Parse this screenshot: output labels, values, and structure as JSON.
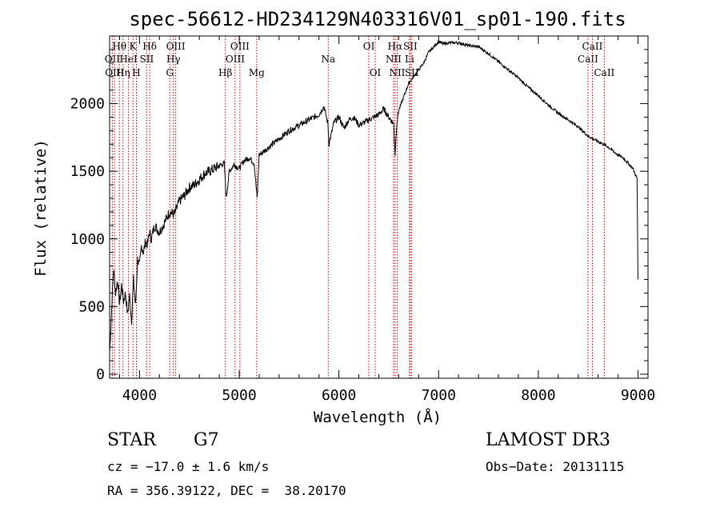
{
  "chart_data": {
    "type": "line",
    "title": "spec-56612-HD234129N403316V01_sp01-190.fits",
    "xlabel": "Wavelength (Å)",
    "ylabel": "Flux (relative)",
    "xlim": [
      3700,
      9100
    ],
    "ylim": [
      -30,
      2500
    ],
    "xticks": [
      4000,
      5000,
      6000,
      7000,
      8000,
      9000
    ],
    "yticks": [
      0,
      500,
      1000,
      1500,
      2000
    ],
    "series": [
      {
        "name": "flux",
        "x": [
          3700,
          3720,
          3740,
          3760,
          3780,
          3800,
          3820,
          3840,
          3860,
          3880,
          3900,
          3920,
          3940,
          3960,
          3980,
          4000,
          4020,
          4040,
          4060,
          4080,
          4100,
          4120,
          4150,
          4200,
          4250,
          4300,
          4350,
          4400,
          4450,
          4500,
          4550,
          4600,
          4650,
          4700,
          4750,
          4800,
          4850,
          4870,
          4900,
          4950,
          5000,
          5050,
          5100,
          5150,
          5180,
          5200,
          5300,
          5400,
          5500,
          5600,
          5700,
          5800,
          5850,
          5890,
          5900,
          5950,
          6000,
          6050,
          6100,
          6150,
          6200,
          6250,
          6300,
          6350,
          6400,
          6450,
          6500,
          6550,
          6563,
          6580,
          6600,
          6650,
          6700,
          6750,
          6800,
          6850,
          6900,
          6950,
          7000,
          7050,
          7100,
          7200,
          7300,
          7400,
          7500,
          7600,
          7700,
          7800,
          7900,
          8000,
          8100,
          8200,
          8300,
          8400,
          8500,
          8550,
          8600,
          8650,
          8700,
          8750,
          8800,
          8850,
          8900,
          8950,
          8970,
          8990,
          9000
        ],
        "y": [
          150,
          480,
          780,
          600,
          700,
          520,
          660,
          540,
          600,
          440,
          580,
          400,
          700,
          500,
          850,
          800,
          950,
          900,
          980,
          960,
          1050,
          1000,
          1100,
          1050,
          1120,
          1200,
          1180,
          1280,
          1320,
          1380,
          1400,
          1440,
          1480,
          1500,
          1520,
          1540,
          1560,
          1300,
          1500,
          1550,
          1520,
          1580,
          1600,
          1560,
          1300,
          1620,
          1680,
          1740,
          1800,
          1840,
          1880,
          1920,
          1980,
          1850,
          1700,
          1860,
          1900,
          1820,
          1880,
          1900,
          1840,
          1860,
          1880,
          1900,
          1920,
          1960,
          1900,
          1850,
          1620,
          1850,
          1950,
          2050,
          2150,
          2200,
          2250,
          2300,
          2380,
          2420,
          2460,
          2440,
          2450,
          2450,
          2430,
          2420,
          2370,
          2310,
          2250,
          2190,
          2120,
          2060,
          1990,
          1930,
          1880,
          1830,
          1760,
          1740,
          1720,
          1700,
          1680,
          1650,
          1620,
          1600,
          1560,
          1520,
          1480,
          1450,
          700
        ]
      }
    ],
    "spectral_lines": [
      {
        "wl": 3727,
        "label": "OII",
        "row": 2
      },
      {
        "wl": 3750,
        "label": "OIII",
        "row": 3
      },
      {
        "wl": 3798,
        "label": "Hθ",
        "row": 1
      },
      {
        "wl": 3835,
        "label": "Hη",
        "row": 3
      },
      {
        "wl": 3889,
        "label": "HeI",
        "row": 2
      },
      {
        "wl": 3934,
        "label": "K",
        "row": 1
      },
      {
        "wl": 3969,
        "label": "H",
        "row": 3
      },
      {
        "wl": 4072,
        "label": "SII",
        "row": 2
      },
      {
        "wl": 4102,
        "label": "Hδ",
        "row": 1
      },
      {
        "wl": 4304,
        "label": "G",
        "row": 3
      },
      {
        "wl": 4340,
        "label": "Hγ",
        "row": 2
      },
      {
        "wl": 4363,
        "label": "OIII",
        "row": 1
      },
      {
        "wl": 4861,
        "label": "Hβ",
        "row": 3
      },
      {
        "wl": 4959,
        "label": "OIII",
        "row": 2
      },
      {
        "wl": 5007,
        "label": "OIII",
        "row": 1
      },
      {
        "wl": 5175,
        "label": "Mg",
        "row": 3
      },
      {
        "wl": 5893,
        "label": "Na",
        "row": 2
      },
      {
        "wl": 6300,
        "label": "OI",
        "row": 1
      },
      {
        "wl": 6364,
        "label": "OI",
        "row": 3
      },
      {
        "wl": 6548,
        "label": "NII",
        "row": 2
      },
      {
        "wl": 6563,
        "label": "Hα",
        "row": 1
      },
      {
        "wl": 6584,
        "label": "NII",
        "row": 3
      },
      {
        "wl": 6708,
        "label": "Li",
        "row": 2
      },
      {
        "wl": 6716,
        "label": "SII",
        "row": 1
      },
      {
        "wl": 6731,
        "label": "SII",
        "row": 3
      },
      {
        "wl": 8498,
        "label": "CaII",
        "row": 2
      },
      {
        "wl": 8542,
        "label": "CaII",
        "row": 1
      },
      {
        "wl": 8662,
        "label": "CaII",
        "row": 3
      }
    ]
  },
  "info": {
    "class": "STAR",
    "subclass": "G7",
    "survey": "LAMOST DR3",
    "cz": "cz = −17.0 ± 1.6 km/s",
    "obs_date": "Obs−Date: 20131115",
    "coords": "RA = 356.39122, DEC =  38.20170"
  }
}
